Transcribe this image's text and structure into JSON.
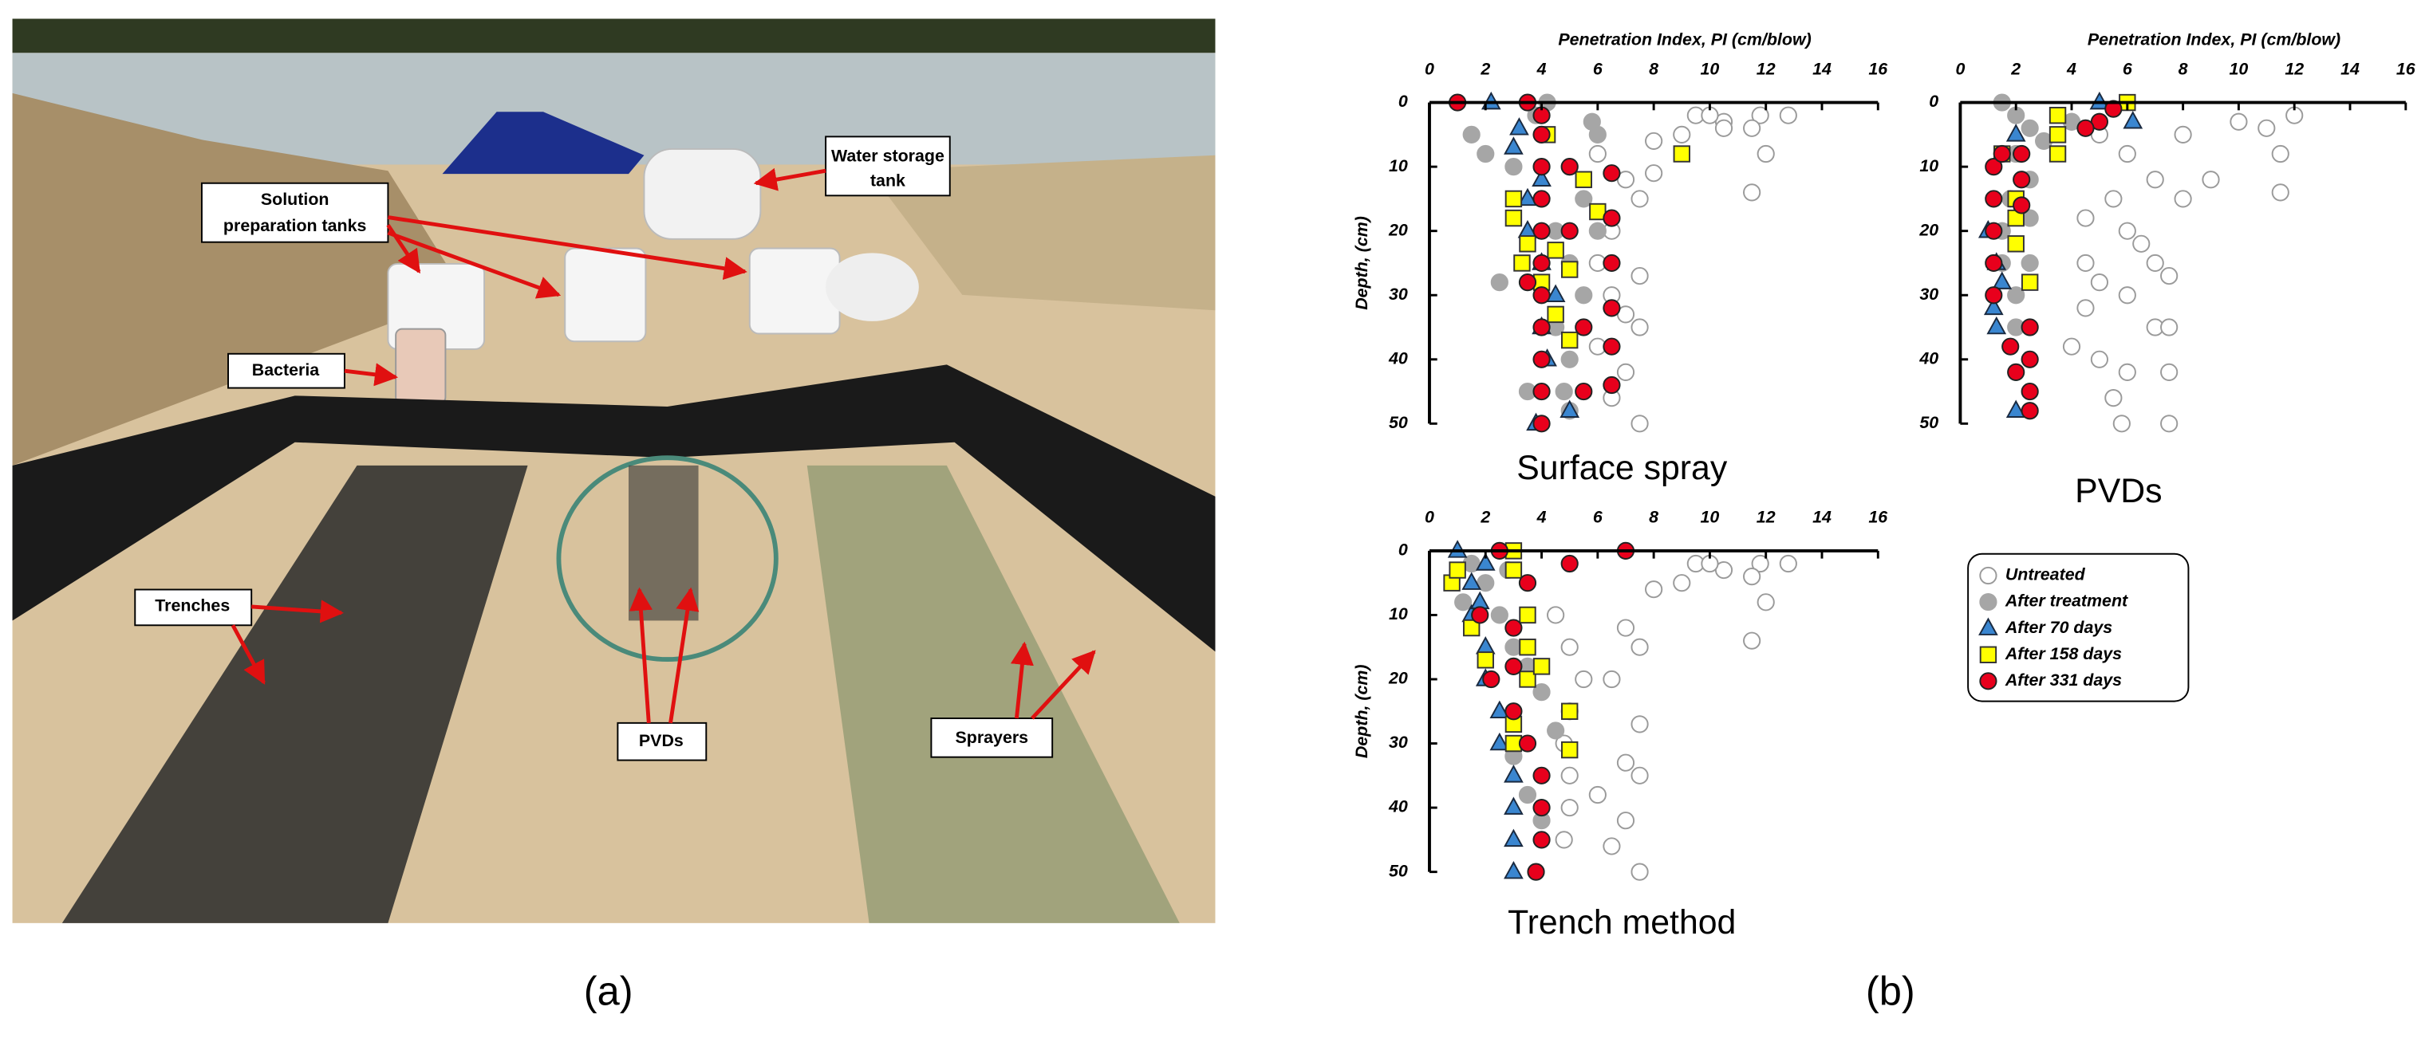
{
  "figure": {
    "panel_labels": [
      "(a)",
      "(b)"
    ],
    "photo_labels": [
      {
        "lines": [
          "Solution",
          "preparation tanks"
        ]
      },
      {
        "lines": [
          "Water storage",
          "tank"
        ]
      },
      {
        "lines": [
          "Bacteria"
        ]
      },
      {
        "lines": [
          "Trenches"
        ]
      },
      {
        "lines": [
          "PVDs"
        ]
      },
      {
        "lines": [
          "Sprayers"
        ]
      }
    ]
  },
  "chart_data": [
    {
      "type": "scatter",
      "title": "Surface spray",
      "xlabel": "Penetration Index, PI (cm/blow)",
      "ylabel": "Depth, (cm)",
      "xlim": [
        0,
        16
      ],
      "ylim": [
        0,
        50
      ],
      "xticks": [
        0,
        2,
        4,
        6,
        8,
        10,
        12,
        14,
        16
      ],
      "yticks": [
        0,
        10,
        20,
        30,
        40,
        50
      ],
      "y_inverted": true,
      "x_axis_position": "top",
      "series": [
        {
          "marker": "circle-open",
          "color": "#ffffff",
          "edgecolor": "#9a9a9a",
          "x": [
            9.5,
            10.5,
            11.8,
            12.8,
            11.5,
            12,
            9,
            8,
            10,
            7,
            7.5,
            11.5,
            6.5,
            7.5,
            7,
            7.5,
            6,
            7,
            6.5,
            7.5,
            6,
            6.5,
            8,
            10.5,
            6
          ],
          "values": [
            2,
            3,
            2,
            2,
            4,
            8,
            5,
            6,
            2,
            12,
            15,
            14,
            20,
            27,
            33,
            35,
            38,
            42,
            46,
            50,
            25,
            30,
            11,
            4,
            8
          ]
        },
        {
          "marker": "circle",
          "color": "#a6a6a6",
          "edgecolor": "#a6a6a6",
          "x": [
            1.5,
            2,
            2.5,
            3,
            4,
            4.5,
            5,
            5.5,
            6,
            5,
            4.5,
            5,
            3.5,
            5,
            3.8,
            4.2,
            5.5,
            6,
            5.8,
            4.8
          ],
          "values": [
            5,
            8,
            28,
            10,
            15,
            20,
            25,
            30,
            5,
            10,
            35,
            40,
            45,
            48,
            2,
            0,
            15,
            20,
            3,
            45
          ]
        },
        {
          "marker": "triangle",
          "color": "#3a86d0",
          "edgecolor": "#1a2a40",
          "x": [
            2.2,
            3,
            3.5,
            3.5,
            4,
            4.5,
            4,
            4.2,
            5,
            3.8,
            3.2,
            4
          ],
          "values": [
            0,
            7,
            15,
            20,
            25,
            30,
            35,
            40,
            48,
            50,
            4,
            12
          ]
        },
        {
          "marker": "square",
          "color": "#ffff00",
          "edgecolor": "#333333",
          "x": [
            3,
            3,
            3.5,
            4.5,
            5,
            4,
            4.5,
            5,
            5.5,
            6,
            9,
            4.2,
            3.3
          ],
          "values": [
            15,
            18,
            22,
            23,
            26,
            28,
            33,
            37,
            12,
            17,
            8,
            5,
            25
          ]
        },
        {
          "marker": "circle",
          "color": "#e8001c",
          "edgecolor": "#222222",
          "x": [
            1,
            3.5,
            4,
            4,
            4,
            4,
            4,
            4,
            4,
            4,
            4,
            4,
            4,
            6.5,
            6.5,
            6.5,
            6.5,
            6.5,
            6.5,
            5,
            5.5,
            5.5,
            5,
            3.5
          ],
          "values": [
            0,
            0,
            2,
            5,
            10,
            15,
            20,
            25,
            30,
            35,
            40,
            45,
            50,
            11,
            18,
            25,
            32,
            38,
            44,
            10,
            35,
            45,
            20,
            28
          ]
        }
      ]
    },
    {
      "type": "scatter",
      "title": "PVDs",
      "xlabel": "Penetration Index, PI (cm/blow)",
      "xlim": [
        0,
        16
      ],
      "ylim": [
        0,
        50
      ],
      "xticks": [
        0,
        2,
        4,
        6,
        8,
        10,
        12,
        14,
        16
      ],
      "yticks": [
        0,
        10,
        20,
        30,
        40,
        50
      ],
      "y_inverted": true,
      "x_axis_position": "top",
      "series": [
        {
          "marker": "circle-open",
          "color": "#ffffff",
          "edgecolor": "#9a9a9a",
          "x": [
            4,
            5,
            6,
            7,
            8,
            6,
            7,
            5,
            6,
            7,
            5,
            6,
            5.5,
            5.8,
            7.5,
            7.5,
            7.5,
            7.5,
            11,
            12,
            11.5,
            11.5,
            9,
            8,
            10,
            4.5,
            4.5,
            4.5,
            4,
            6.5,
            5.5
          ],
          "values": [
            3,
            5,
            8,
            12,
            15,
            20,
            25,
            28,
            30,
            35,
            40,
            42,
            46,
            50,
            50,
            42,
            35,
            27,
            4,
            2,
            8,
            14,
            12,
            5,
            3,
            18,
            25,
            32,
            38,
            22,
            15
          ]
        },
        {
          "marker": "circle",
          "color": "#a6a6a6",
          "edgecolor": "#a6a6a6",
          "x": [
            1.5,
            2,
            2.5,
            2,
            2.5,
            2.5,
            2.5,
            2,
            1.5,
            1.8,
            3,
            4,
            1.5,
            2
          ],
          "values": [
            0,
            2,
            4,
            8,
            12,
            18,
            25,
            30,
            20,
            15,
            6,
            3,
            25,
            35
          ]
        },
        {
          "marker": "triangle",
          "color": "#3a86d0",
          "edgecolor": "#1a2a40",
          "x": [
            1.2,
            1.3,
            1.5,
            1,
            1.3,
            2,
            2,
            5,
            6.2
          ],
          "values": [
            32,
            35,
            28,
            20,
            25,
            48,
            5,
            0,
            3
          ]
        },
        {
          "marker": "square",
          "color": "#ffff00",
          "edgecolor": "#333333",
          "x": [
            3.5,
            3.5,
            3.5,
            2,
            2,
            2,
            2.5,
            6,
            1.5
          ],
          "values": [
            2,
            5,
            8,
            15,
            18,
            22,
            28,
            0,
            8
          ]
        },
        {
          "marker": "circle",
          "color": "#e8001c",
          "edgecolor": "#222222",
          "x": [
            1.2,
            1.2,
            1.2,
            1.2,
            1.2,
            1.5,
            2.2,
            2.2,
            2.2,
            2.5,
            2.5,
            2.5,
            2.5,
            2,
            1.8,
            5,
            5.5,
            4.5
          ],
          "values": [
            10,
            15,
            20,
            25,
            30,
            8,
            8,
            12,
            16,
            35,
            40,
            45,
            48,
            42,
            38,
            3,
            1,
            4
          ]
        }
      ]
    },
    {
      "type": "scatter",
      "title": "Trench method",
      "ylabel": "Depth, (cm)",
      "xlim": [
        0,
        16
      ],
      "ylim": [
        0,
        50
      ],
      "xticks": [
        0,
        2,
        4,
        6,
        8,
        10,
        12,
        14,
        16
      ],
      "yticks": [
        0,
        10,
        20,
        30,
        40,
        50
      ],
      "y_inverted": true,
      "x_axis_position": "top",
      "legend": "right",
      "series": [
        {
          "name": "Untreated",
          "marker": "circle-open",
          "color": "#ffffff",
          "edgecolor": "#9a9a9a",
          "x": [
            9.5,
            10.5,
            11.8,
            12.8,
            11.5,
            12,
            9,
            8,
            10,
            7,
            7.5,
            11.5,
            6.5,
            7.5,
            7,
            7.5,
            6,
            7,
            6.5,
            7.5,
            4.5,
            5,
            5.5,
            5,
            4.8,
            5,
            5,
            4.8
          ],
          "values": [
            2,
            3,
            2,
            2,
            4,
            8,
            5,
            6,
            2,
            12,
            15,
            14,
            20,
            27,
            33,
            35,
            38,
            42,
            46,
            50,
            10,
            15,
            20,
            25,
            30,
            35,
            40,
            45
          ]
        },
        {
          "name": "After treatment",
          "marker": "circle",
          "color": "#a6a6a6",
          "edgecolor": "#a6a6a6",
          "x": [
            1.5,
            2,
            2.5,
            3,
            3.5,
            4,
            4.5,
            3,
            3.5,
            4,
            1.2,
            2.8
          ],
          "values": [
            2,
            5,
            10,
            15,
            18,
            22,
            28,
            32,
            38,
            42,
            8,
            3
          ]
        },
        {
          "name": "After 70 days",
          "marker": "triangle",
          "color": "#3a86d0",
          "edgecolor": "#1a2a40",
          "x": [
            1,
            1.5,
            1.5,
            2,
            2,
            2.5,
            2.5,
            3,
            3,
            3,
            3,
            2,
            1.8
          ],
          "values": [
            0,
            5,
            10,
            15,
            20,
            25,
            30,
            35,
            40,
            45,
            50,
            2,
            8
          ]
        },
        {
          "name": "After 158 days",
          "marker": "square",
          "color": "#ffff00",
          "edgecolor": "#333333",
          "x": [
            0.8,
            1,
            1.5,
            2,
            3,
            3,
            3.5,
            3.5,
            3.5,
            3,
            3,
            5,
            5,
            4
          ],
          "values": [
            5,
            3,
            12,
            17,
            0,
            3,
            10,
            15,
            20,
            27,
            30,
            25,
            31,
            18
          ]
        },
        {
          "name": "After 331 days",
          "marker": "circle",
          "color": "#e8001c",
          "edgecolor": "#222222",
          "x": [
            7,
            5,
            2.5,
            1.8,
            2.2,
            3,
            3.5,
            4,
            4,
            4,
            3.8,
            3.5,
            3,
            3
          ],
          "values": [
            0,
            2,
            0,
            10,
            20,
            25,
            30,
            35,
            40,
            45,
            50,
            5,
            12,
            18
          ]
        }
      ]
    }
  ]
}
